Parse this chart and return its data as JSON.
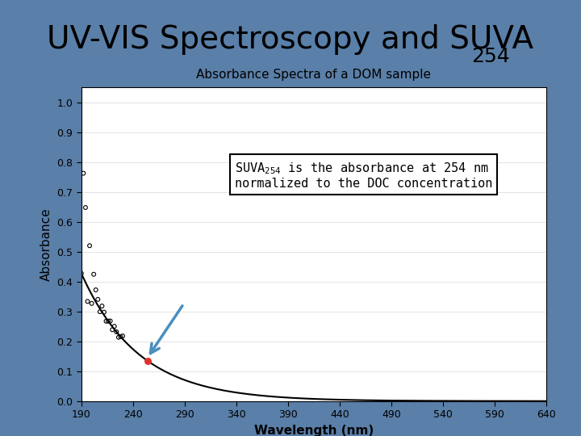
{
  "title_main": "UV-VIS Spectroscopy and SUVA",
  "title_sub": "254",
  "chart_title": "Absorbance Spectra of a DOM sample",
  "xlabel": "Wavelength (nm)",
  "ylabel": "Absorbance",
  "xlim": [
    190,
    640
  ],
  "ylim": [
    0,
    1.05
  ],
  "yticks": [
    0,
    0.1,
    0.2,
    0.3,
    0.4,
    0.5,
    0.6,
    0.7,
    0.8,
    0.9,
    1
  ],
  "xticks": [
    190,
    240,
    290,
    340,
    390,
    440,
    490,
    540,
    590,
    640
  ],
  "suva_wavelength": 254,
  "suva_absorbance": 0.135,
  "annotation_text_line1": "SUVA",
  "annotation_text_sub": "254",
  "annotation_text_line2": " is the absorbance at 254 nm",
  "annotation_text_line3": "normalized to the DOC concentration",
  "bg_color": "#5a7fa8",
  "plot_bg": "#ffffff",
  "curve_color": "#000000",
  "scatter_color": "#000000",
  "highlight_color": "#e03030",
  "arrow_color": "#4a8fc0",
  "scatter_outlier_color": "#000000"
}
